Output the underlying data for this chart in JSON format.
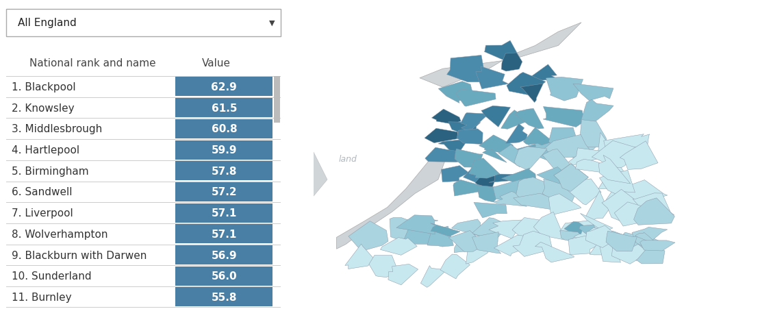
{
  "dropdown_label": "All England",
  "header_col1": "National rank and name",
  "header_col2": "Value",
  "rows": [
    {
      "rank": 1,
      "name": "Blackpool",
      "value": 62.9
    },
    {
      "rank": 2,
      "name": "Knowsley",
      "value": 61.5
    },
    {
      "rank": 3,
      "name": "Middlesbrough",
      "value": 60.8
    },
    {
      "rank": 4,
      "name": "Hartlepool",
      "value": 59.9
    },
    {
      "rank": 5,
      "name": "Birmingham",
      "value": 57.8
    },
    {
      "rank": 6,
      "name": "Sandwell",
      "value": 57.2
    },
    {
      "rank": 7,
      "name": "Liverpool",
      "value": 57.1
    },
    {
      "rank": 8,
      "name": "Wolverhampton",
      "value": 57.1
    },
    {
      "rank": 9,
      "name": "Blackburn with Darwen",
      "value": 56.9
    },
    {
      "rank": 10,
      "name": "Sunderland",
      "value": 56.0
    },
    {
      "rank": 11,
      "name": "Burnley",
      "value": 55.8
    }
  ],
  "bar_color": "#4a7fa5",
  "bar_text_color": "#ffffff",
  "row_separator_color": "#cccccc",
  "dropdown_border_color": "#aaaaaa",
  "dropdown_bg": "#ffffff",
  "header_text_color": "#444444",
  "rank_text_color": "#333333",
  "bg_color": "#ffffff",
  "scrollbar_color": "#bbbbbb",
  "font_size_header": 11,
  "font_size_row": 11,
  "font_size_value": 11,
  "font_size_dropdown": 11,
  "c_dark": "#2a6280",
  "c_med_dk": "#3a7a9a",
  "c_med": "#4a8aaa",
  "c_med_lt": "#6aaabf",
  "c_light": "#8fc4d4",
  "c_lighter": "#aad5e0",
  "c_lightest": "#c8e8ef",
  "wales_color": "#cdd3d7",
  "scotland_color": "#d0d5d8",
  "ireland_color": "#d0d5d8",
  "map_bg": "#f0f4f8",
  "map_border": "#8899aa"
}
